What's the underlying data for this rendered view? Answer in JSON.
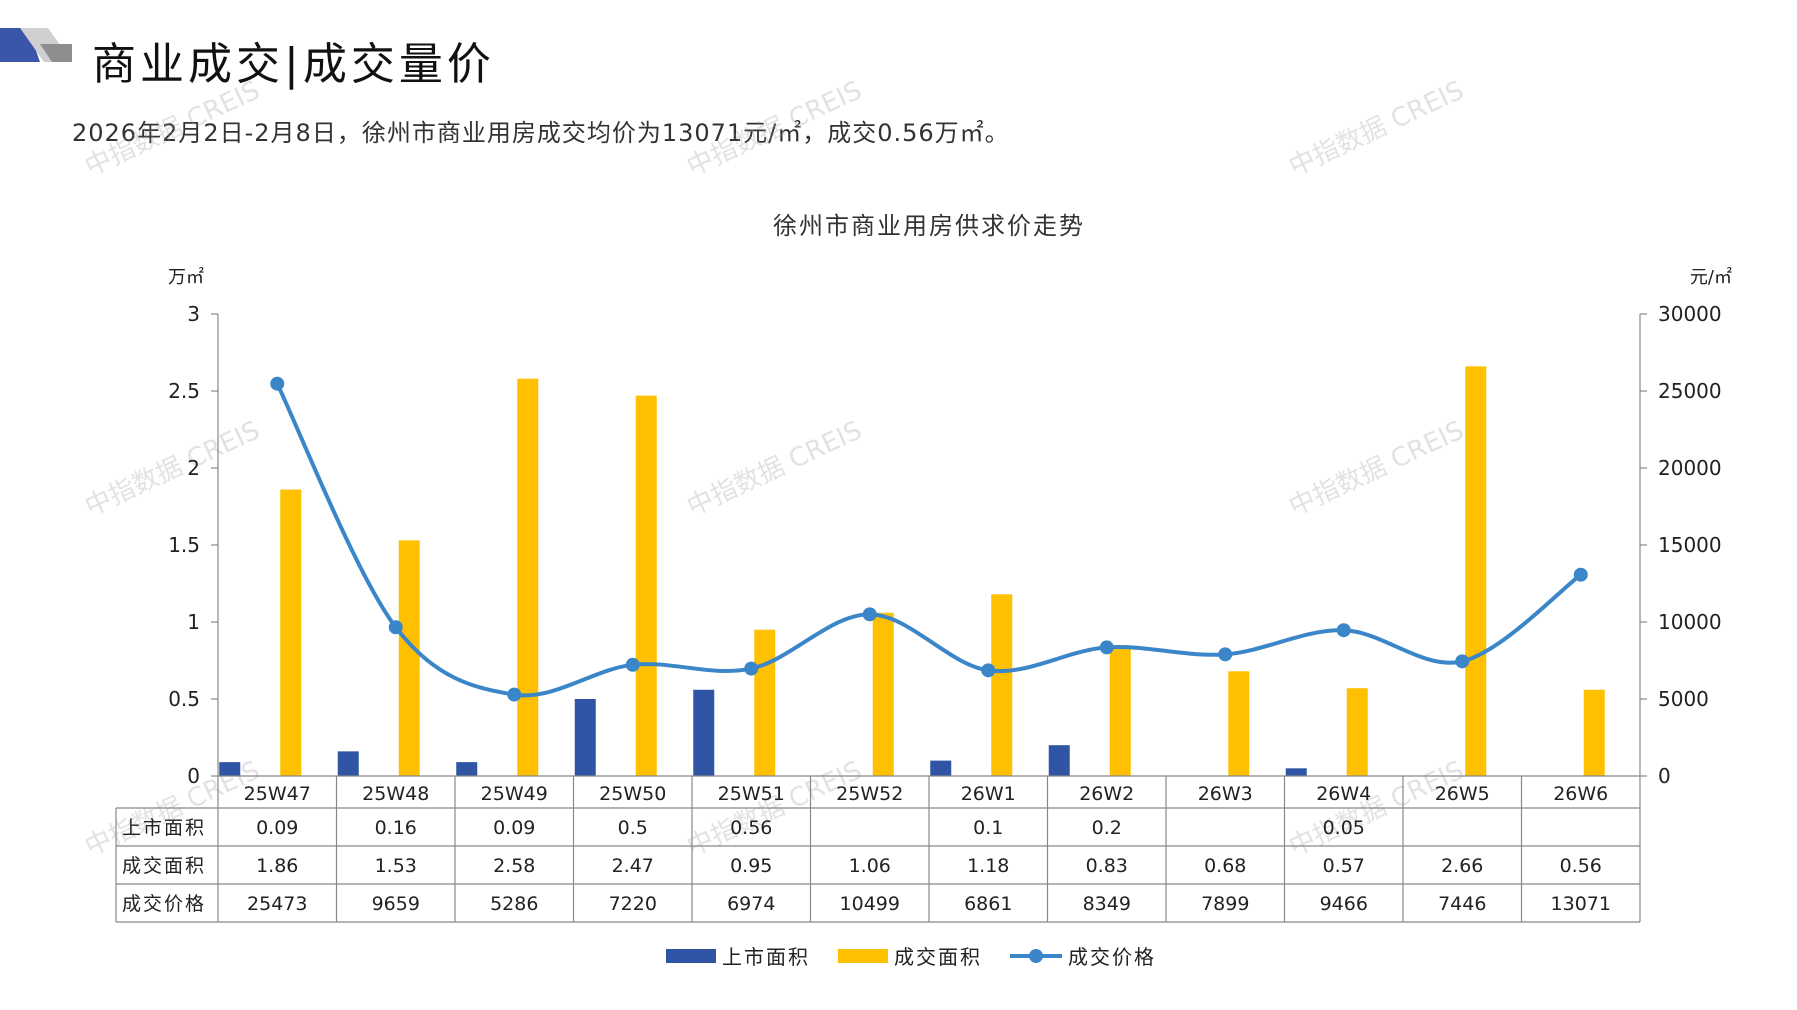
{
  "header": {
    "title": "商业成交|成交量价",
    "summary": "2026年2月2日-2月8日，徐州市商业用房成交均价为13071元/㎡，成交0.56万㎡。"
  },
  "watermark": "中指数据 CREIS",
  "colors": {
    "supply": "#2f55a4",
    "deal": "#ffc000",
    "price": "#3b86c8",
    "header_block": "#3a56a8",
    "header_grey": "#b0b0b0"
  },
  "chart_data": {
    "type": "bar",
    "title": "徐州市商业用房供求价走势",
    "y_left_label": "万㎡",
    "y_right_label": "元/㎡",
    "ylim_left": [
      0,
      3
    ],
    "ylim_right": [
      0,
      30000
    ],
    "left_ticks": [
      "0",
      "0.5",
      "1",
      "1.5",
      "2",
      "2.5",
      "3"
    ],
    "right_ticks": [
      "0",
      "5000",
      "10000",
      "15000",
      "20000",
      "25000",
      "30000"
    ],
    "categories": [
      "25W47",
      "25W48",
      "25W49",
      "25W50",
      "25W51",
      "25W52",
      "26W1",
      "26W2",
      "26W3",
      "26W4",
      "26W5",
      "26W6"
    ],
    "series": [
      {
        "name": "上市面积",
        "type": "bar",
        "axis": "left",
        "color": "#2f55a4",
        "values": [
          0.09,
          0.16,
          0.09,
          0.5,
          0.56,
          null,
          0.1,
          0.2,
          null,
          0.05,
          null,
          null
        ],
        "labels": [
          "0.09",
          "0.16",
          "0.09",
          "0.5",
          "0.56",
          "",
          "0.1",
          "0.2",
          "",
          "0.05",
          "",
          ""
        ]
      },
      {
        "name": "成交面积",
        "type": "bar",
        "axis": "left",
        "color": "#ffc000",
        "values": [
          1.86,
          1.53,
          2.58,
          2.47,
          0.95,
          1.06,
          1.18,
          0.83,
          0.68,
          0.57,
          2.66,
          0.56
        ],
        "labels": [
          "1.86",
          "1.53",
          "2.58",
          "2.47",
          "0.95",
          "1.06",
          "1.18",
          "0.83",
          "0.68",
          "0.57",
          "2.66",
          "0.56"
        ]
      },
      {
        "name": "成交价格",
        "type": "line",
        "axis": "right",
        "color": "#3b86c8",
        "values": [
          25473,
          9659,
          5286,
          7220,
          6974,
          10499,
          6861,
          8349,
          7899,
          9466,
          7446,
          13071
        ],
        "labels": [
          "25473",
          "9659",
          "5286",
          "7220",
          "6974",
          "10499",
          "6861",
          "8349",
          "7899",
          "9466",
          "7446",
          "13071"
        ]
      }
    ],
    "legend_position": "bottom",
    "grid": false
  }
}
